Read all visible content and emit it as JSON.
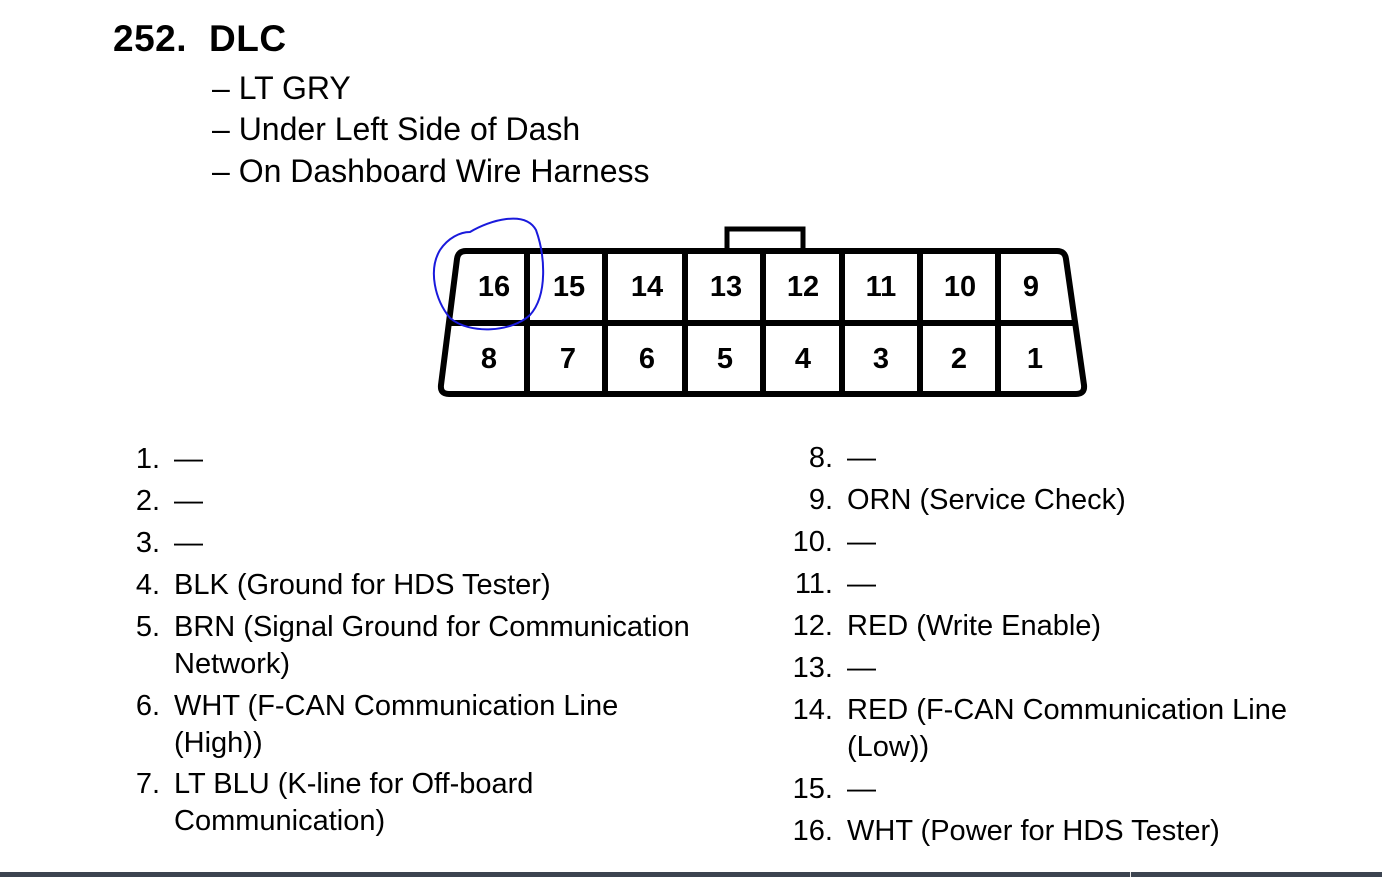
{
  "heading": {
    "number": "252.",
    "title": "DLC"
  },
  "details": [
    "– LT GRY",
    "– Under Left Side of Dash",
    "– On Dashboard Wire Harness"
  ],
  "connector": {
    "top_row": [
      "16",
      "15",
      "14",
      "13",
      "12",
      "11",
      "10",
      "9"
    ],
    "bottom_row": [
      "8",
      "7",
      "6",
      "5",
      "4",
      "3",
      "2",
      "1"
    ],
    "highlighted_terminal": "16",
    "highlight_color": "#1a1adc"
  },
  "terminals_left": [
    {
      "num": "1.",
      "desc": "—"
    },
    {
      "num": "2.",
      "desc": "—"
    },
    {
      "num": "3.",
      "desc": "—"
    },
    {
      "num": "4.",
      "desc": "BLK (Ground for HDS Tester)"
    },
    {
      "num": "5.",
      "desc": "BRN (Signal Ground for Communication",
      "desc2": "Network)"
    },
    {
      "num": "6.",
      "desc": "WHT (F-CAN Communication Line",
      "desc2": "(High))"
    },
    {
      "num": "7.",
      "desc": "LT BLU (K-line for Off-board",
      "desc2": "Communication)"
    }
  ],
  "terminals_right": [
    {
      "num": "8.",
      "desc": "—"
    },
    {
      "num": "9.",
      "desc": "ORN (Service Check)"
    },
    {
      "num": "10.",
      "desc": "—"
    },
    {
      "num": "11.",
      "desc": "—"
    },
    {
      "num": "12.",
      "desc": "RED (Write Enable)"
    },
    {
      "num": "13.",
      "desc": "—"
    },
    {
      "num": "14.",
      "desc": "RED (F-CAN Communication Line",
      "desc2": "(Low))"
    },
    {
      "num": "15.",
      "desc": "—"
    },
    {
      "num": "16.",
      "desc": "WHT (Power for HDS Tester)"
    }
  ]
}
